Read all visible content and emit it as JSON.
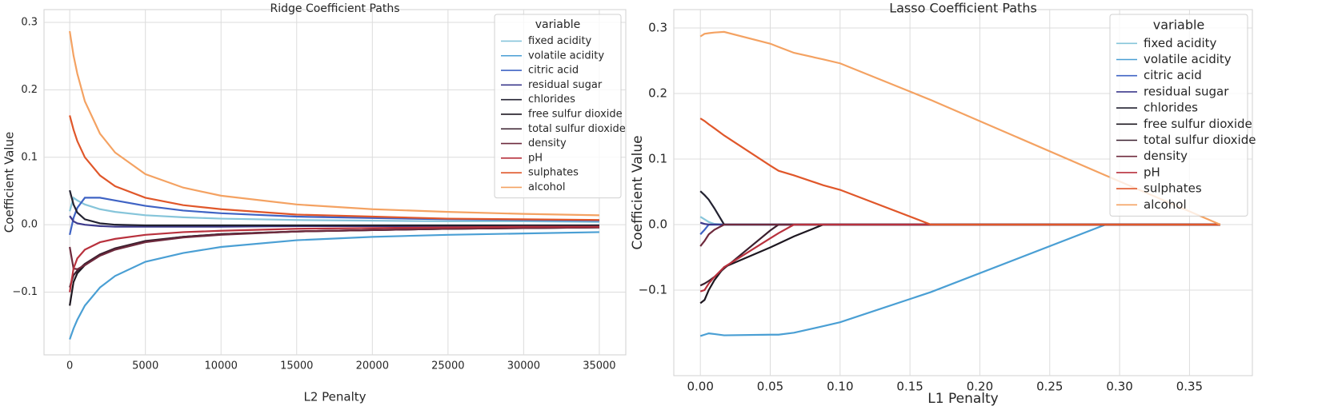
{
  "chart_data": [
    {
      "type": "line",
      "title": "Ridge Coefficient Paths",
      "xlabel": "L2 Penalty",
      "ylabel": "Coefficient Value",
      "legend_title": "variable",
      "legend": "upper right",
      "grid": true,
      "xlim": [
        -1700,
        36750
      ],
      "ylim": [
        -0.193,
        0.319
      ],
      "xticks": [
        0,
        5000,
        10000,
        15000,
        20000,
        25000,
        30000,
        35000
      ],
      "yticks": [
        {
          "value": -0.1,
          "label": "−0.1"
        },
        {
          "value": 0,
          "label": "0.0"
        },
        0.1,
        0.2,
        0.3
      ],
      "x": [
        0,
        250,
        500,
        1000,
        2000,
        3000,
        5000,
        7500,
        10000,
        15000,
        20000,
        25000,
        30000,
        35000
      ],
      "series": [
        {
          "name": "fixed acidity",
          "color": "#86c5da",
          "values": [
            0.02,
            0.04,
            0.036,
            0.03,
            0.023,
            0.019,
            0.014,
            0.011,
            0.009,
            0.007,
            0.006,
            0.005,
            0.005,
            0.004
          ]
        },
        {
          "name": "volatile acidity",
          "color": "#4a9fd4",
          "values": [
            -0.17,
            -0.154,
            -0.141,
            -0.12,
            -0.093,
            -0.076,
            -0.055,
            -0.042,
            -0.033,
            -0.023,
            -0.018,
            -0.015,
            -0.013,
            -0.011
          ]
        },
        {
          "name": "citric acid",
          "color": "#3f63c4",
          "values": [
            -0.015,
            0.01,
            0.025,
            0.04,
            0.04,
            0.036,
            0.028,
            0.021,
            0.017,
            0.012,
            0.01,
            0.008,
            0.007,
            0.006
          ]
        },
        {
          "name": "residual sugar",
          "color": "#3d3a8c",
          "values": [
            0.013,
            0.005,
            0.002,
            0,
            -0.002,
            -0.003,
            -0.003,
            -0.003,
            -0.003,
            -0.002,
            -0.002,
            -0.002,
            -0.002,
            -0.001
          ]
        },
        {
          "name": "chlorides",
          "color": "#232231",
          "values": [
            0.051,
            0.03,
            0.018,
            0.008,
            0.002,
            0,
            -0.001,
            -0.001,
            -0.001,
            -0.001,
            -0.001,
            -0.001,
            -0.001,
            -0.001
          ]
        },
        {
          "name": "free sulfur dioxide",
          "color": "#1d1720",
          "values": [
            -0.12,
            -0.085,
            -0.072,
            -0.06,
            -0.045,
            -0.036,
            -0.025,
            -0.018,
            -0.014,
            -0.01,
            -0.008,
            -0.006,
            -0.005,
            -0.004
          ]
        },
        {
          "name": "total sulfur dioxide",
          "color": "#3a1f2e",
          "values": [
            -0.093,
            -0.075,
            -0.068,
            -0.058,
            -0.044,
            -0.035,
            -0.024,
            -0.018,
            -0.014,
            -0.01,
            -0.008,
            -0.006,
            -0.005,
            -0.004
          ]
        },
        {
          "name": "density",
          "color": "#6e2a3d",
          "values": [
            -0.033,
            -0.065,
            -0.066,
            -0.06,
            -0.046,
            -0.037,
            -0.026,
            -0.019,
            -0.015,
            -0.01,
            -0.008,
            -0.006,
            -0.005,
            -0.004
          ]
        },
        {
          "name": "pH",
          "color": "#b8313d",
          "values": [
            -0.1,
            -0.065,
            -0.05,
            -0.037,
            -0.026,
            -0.021,
            -0.015,
            -0.011,
            -0.009,
            -0.006,
            -0.005,
            -0.004,
            -0.003,
            -0.003
          ]
        },
        {
          "name": "sulphates",
          "color": "#e0572a",
          "values": [
            0.162,
            0.141,
            0.124,
            0.1,
            0.073,
            0.057,
            0.04,
            0.029,
            0.023,
            0.015,
            0.012,
            0.009,
            0.008,
            0.007
          ]
        },
        {
          "name": "alcohol",
          "color": "#f4a262",
          "values": [
            0.287,
            0.251,
            0.224,
            0.183,
            0.135,
            0.107,
            0.075,
            0.055,
            0.043,
            0.03,
            0.023,
            0.019,
            0.016,
            0.014
          ]
        }
      ]
    },
    {
      "type": "line",
      "title": "Lasso Coefficient Paths",
      "xlabel": "L1 Penalty",
      "ylabel": "Coefficient Value",
      "legend_title": "variable",
      "legend": "upper right",
      "grid": true,
      "xlim": [
        -0.019,
        0.395
      ],
      "ylim": [
        -0.2305,
        0.328
      ],
      "xticks": [
        {
          "value": 0,
          "label": "0.00"
        },
        0.05,
        {
          "value": 0.1,
          "label": "0.10"
        },
        0.15,
        {
          "value": 0.2,
          "label": "0.20"
        },
        0.25,
        {
          "value": 0.3,
          "label": "0.30"
        },
        0.35
      ],
      "yticks": [
        {
          "value": -0.1,
          "label": "−0.1"
        },
        {
          "value": 0,
          "label": "0.0"
        },
        0.1,
        0.2,
        0.3
      ],
      "x": [
        0,
        0.003,
        0.006,
        0.01,
        0.017,
        0.05,
        0.056,
        0.067,
        0.088,
        0.1,
        0.165,
        0.29,
        0.372
      ],
      "series": [
        {
          "name": "fixed acidity",
          "color": "#86c5da",
          "values": [
            0.012,
            0.008,
            0.004,
            0.001,
            0,
            0,
            0,
            0,
            0,
            0,
            0,
            0,
            0
          ]
        },
        {
          "name": "volatile acidity",
          "color": "#4a9fd4",
          "values": [
            -0.17,
            -0.168,
            -0.166,
            -0.167,
            -0.169,
            -0.168,
            -0.168,
            -0.165,
            -0.155,
            -0.149,
            -0.103,
            0,
            0
          ]
        },
        {
          "name": "citric acid",
          "color": "#3f63c4",
          "values": [
            -0.015,
            -0.008,
            0,
            0,
            0,
            0,
            0,
            0,
            0,
            0,
            0,
            0,
            0
          ]
        },
        {
          "name": "residual sugar",
          "color": "#3d3a8c",
          "values": [
            0.003,
            0.001,
            0,
            0,
            0,
            0,
            0,
            0,
            0,
            0,
            0,
            0,
            0
          ]
        },
        {
          "name": "chlorides",
          "color": "#232231",
          "values": [
            0.051,
            0.045,
            0.038,
            0.025,
            0,
            0,
            0,
            0,
            0,
            0,
            0,
            0,
            0
          ]
        },
        {
          "name": "free sulfur dioxide",
          "color": "#1d1720",
          "values": [
            -0.12,
            -0.115,
            -0.1,
            -0.085,
            -0.065,
            -0.035,
            -0.029,
            -0.018,
            0,
            0,
            0,
            0,
            0
          ]
        },
        {
          "name": "total sulfur dioxide",
          "color": "#3a1f2e",
          "values": [
            -0.093,
            -0.09,
            -0.086,
            -0.08,
            -0.067,
            -0.009,
            0,
            0,
            0,
            0,
            0,
            0,
            0
          ]
        },
        {
          "name": "density",
          "color": "#6e2a3d",
          "values": [
            -0.033,
            -0.025,
            -0.015,
            -0.008,
            0,
            0,
            0,
            0,
            0,
            0,
            0,
            0,
            0
          ]
        },
        {
          "name": "pH",
          "color": "#b8313d",
          "values": [
            -0.102,
            -0.1,
            -0.09,
            -0.08,
            -0.065,
            -0.021,
            -0.013,
            0,
            0,
            0,
            0,
            0,
            0
          ]
        },
        {
          "name": "sulphates",
          "color": "#e0572a",
          "values": [
            0.162,
            0.158,
            0.153,
            0.147,
            0.136,
            0.09,
            0.082,
            0.075,
            0.06,
            0.053,
            0,
            0,
            0
          ]
        },
        {
          "name": "alcohol",
          "color": "#f4a262",
          "values": [
            0.287,
            0.291,
            0.292,
            0.293,
            0.294,
            0.276,
            0.271,
            0.262,
            0.252,
            0.246,
            0.19,
            0.075,
            0
          ]
        }
      ]
    }
  ]
}
